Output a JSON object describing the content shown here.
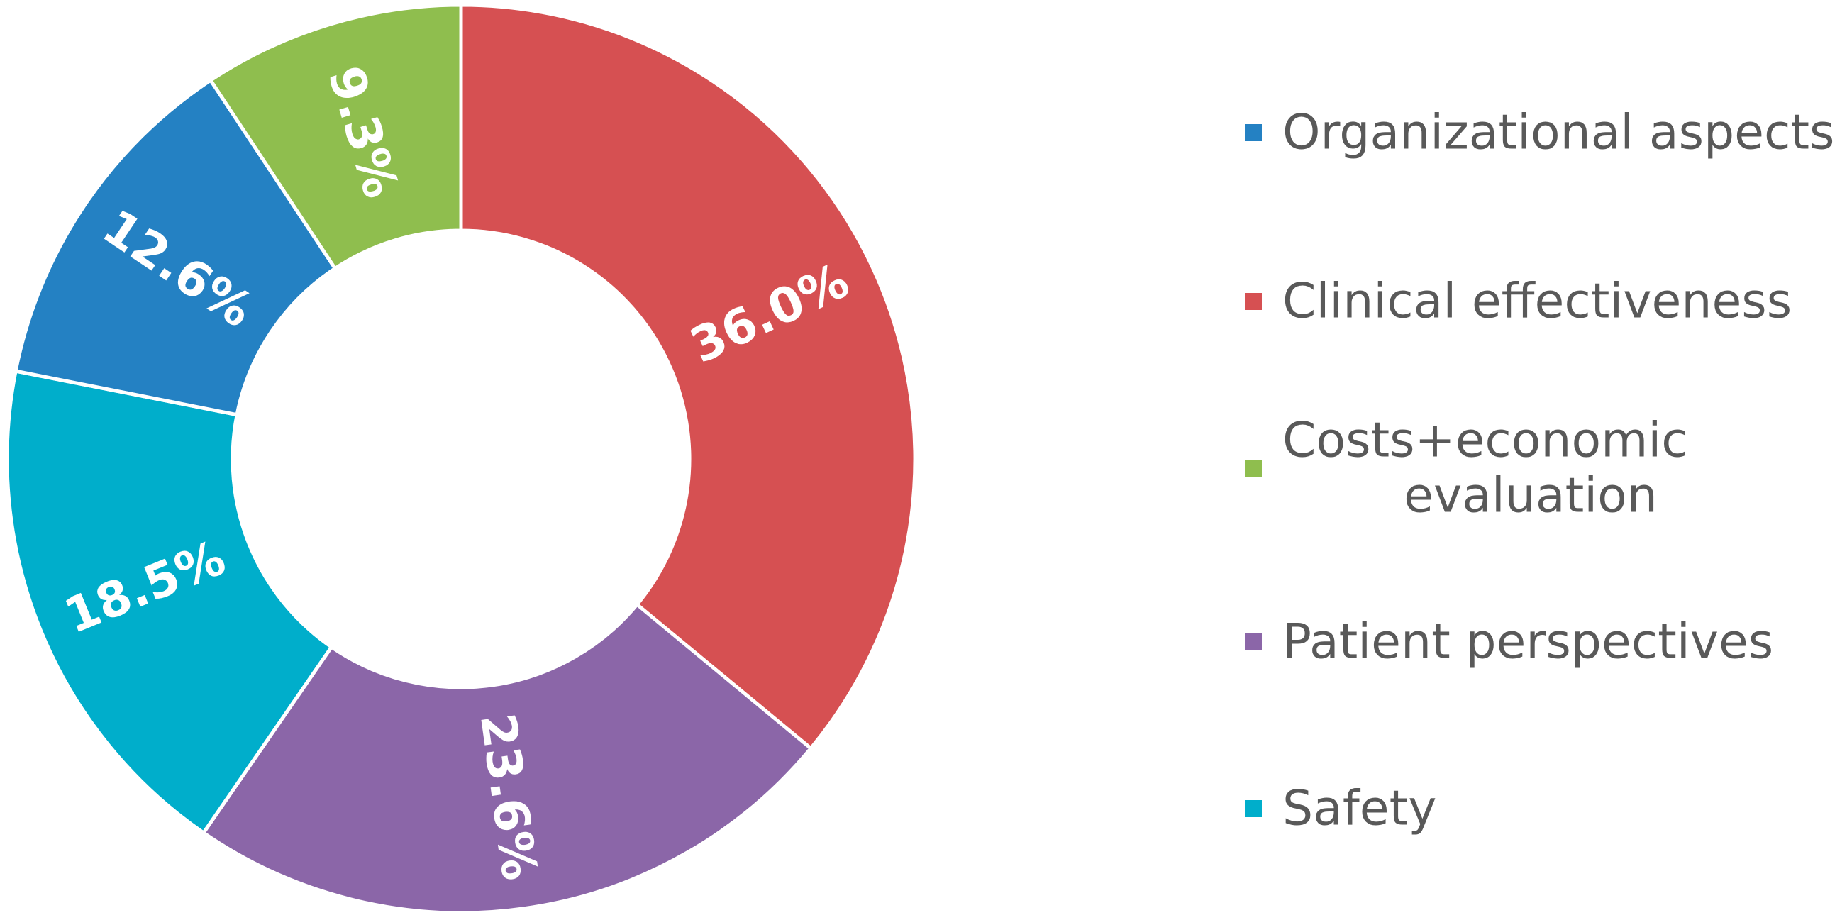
{
  "chart_data": {
    "type": "pie",
    "variant": "donut",
    "title": "",
    "legend_position": "right",
    "slices": [
      {
        "name": "Clinical effectiveness",
        "value": 36.0,
        "label": "36.0%",
        "color": "#D65052"
      },
      {
        "name": "Patient perspectives",
        "value": 23.6,
        "label": "23.6%",
        "color": "#8B66A8"
      },
      {
        "name": "Safety",
        "value": 18.5,
        "label": "18.5%",
        "color": "#00AECB"
      },
      {
        "name": "Organizational aspects",
        "value": 12.6,
        "label": "12.6%",
        "color": "#2481C3"
      },
      {
        "name": "Costs+economic evaluation",
        "value": 9.3,
        "label": "9.3%",
        "color": "#8FBE4E"
      }
    ],
    "legend": [
      {
        "lines": [
          "Organizational aspects"
        ],
        "color": "#2481C3"
      },
      {
        "lines": [
          "Clinical effectiveness"
        ],
        "color": "#D65052"
      },
      {
        "lines": [
          "Costs+economic",
          "evaluation"
        ],
        "color": "#8FBE4E"
      },
      {
        "lines": [
          "Patient perspectives"
        ],
        "color": "#8B66A8"
      },
      {
        "lines": [
          "Safety"
        ],
        "color": "#00AECB"
      }
    ]
  }
}
